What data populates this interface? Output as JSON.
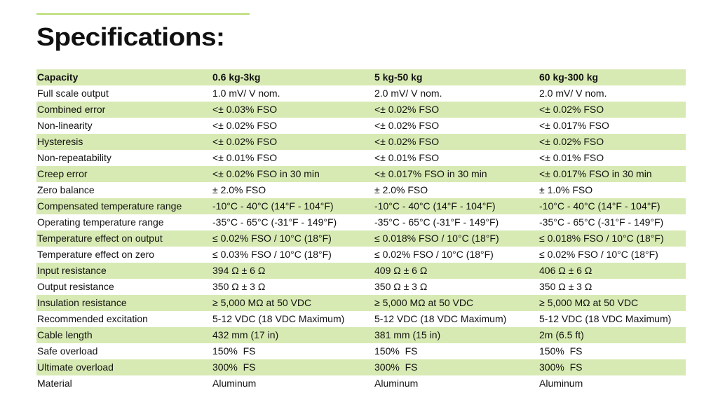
{
  "title": "Specifications:",
  "table": {
    "rows": [
      [
        "Capacity",
        "0.6 kg-3kg",
        "5 kg-50 kg",
        "60 kg-300 kg"
      ],
      [
        "Full scale output",
        "1.0 mV/ V nom.",
        "2.0 mV/ V nom.",
        "2.0 mV/ V nom."
      ],
      [
        "Combined error",
        "<± 0.03% FSO",
        "<± 0.02% FSO",
        "<± 0.02% FSO"
      ],
      [
        "Non-linearity",
        "<± 0.02% FSO",
        "<± 0.02% FSO",
        "<± 0.017% FSO"
      ],
      [
        "Hysteresis",
        "<± 0.02% FSO",
        "<± 0.02% FSO",
        "<± 0.02% FSO"
      ],
      [
        "Non-repeatability",
        "<± 0.01% FSO",
        "<± 0.01% FSO",
        "<± 0.01% FSO"
      ],
      [
        "Creep error",
        "<± 0.02% FSO in 30 min",
        "<± 0.017% FSO in 30 min",
        "<± 0.017% FSO in 30 min"
      ],
      [
        "Zero balance",
        "± 2.0% FSO",
        "± 2.0% FSO",
        "± 1.0% FSO"
      ],
      [
        "Compensated temperature range",
        "-10°C - 40°C (14°F - 104°F)",
        "-10°C - 40°C (14°F - 104°F)",
        "-10°C - 40°C (14°F - 104°F)"
      ],
      [
        "Operating temperature range",
        "-35°C - 65°C (-31°F - 149°F)",
        "-35°C - 65°C (-31°F - 149°F)",
        "-35°C - 65°C (-31°F - 149°F)"
      ],
      [
        "Temperature effect on output",
        "≤ 0.02% FSO / 10°C (18°F)",
        "≤ 0.018% FSO / 10°C (18°F)",
        "≤ 0.018% FSO / 10°C (18°F)"
      ],
      [
        "Temperature effect on zero",
        "≤ 0.03% FSO / 10°C (18°F)",
        "≤ 0.02% FSO / 10°C (18°F)",
        "≤ 0.02% FSO / 10°C (18°F)"
      ],
      [
        "Input resistance",
        "394 Ω ± 6 Ω",
        "409 Ω ± 6 Ω",
        "406 Ω ± 6 Ω"
      ],
      [
        "Output resistance",
        "350 Ω ± 3 Ω",
        "350 Ω ± 3 Ω",
        "350 Ω ± 3 Ω"
      ],
      [
        "Insulation resistance",
        "≥ 5,000 MΩ at 50 VDC",
        "≥ 5,000 MΩ at 50 VDC",
        "≥ 5,000 MΩ at 50 VDC"
      ],
      [
        "Recommended excitation",
        "5-12 VDC (18 VDC Maximum)",
        "5-12 VDC (18 VDC Maximum)",
        "5-12 VDC (18 VDC Maximum)"
      ],
      [
        "Cable length",
        "432 mm (17 in)",
        "381 mm (15 in)",
        "2m (6.5 ft)"
      ],
      [
        "Safe overload",
        "150%  FS",
        "150%  FS",
        "150%  FS"
      ],
      [
        "Ultimate overload",
        "300%  FS",
        "300%  FS",
        "300%  FS"
      ],
      [
        "Material",
        "Aluminum",
        "Aluminum",
        "Aluminum"
      ]
    ]
  }
}
